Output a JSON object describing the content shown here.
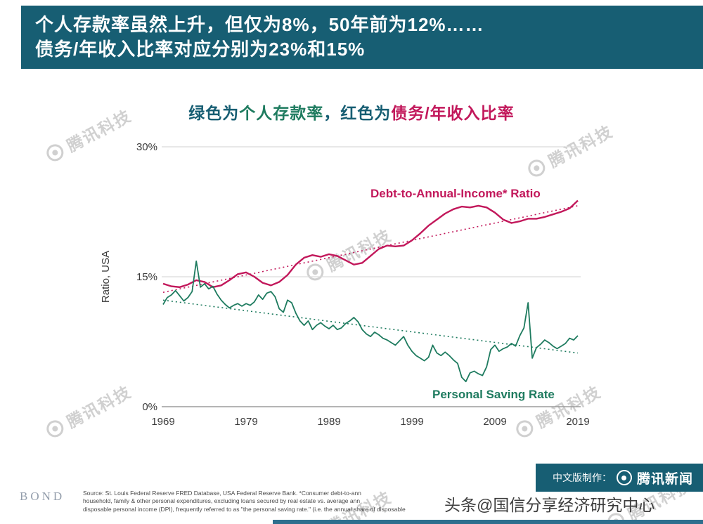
{
  "header": {
    "line1": "个人存款率虽然上升，但仅为8%，50年前为12%……",
    "line2": "债务/年收入比率对应分别为23%和15%"
  },
  "chart_title": {
    "part1": "绿色为",
    "part2": "个人存款率",
    "part3": "，红色为",
    "part4": "债务/年收入比率"
  },
  "chart_data": {
    "type": "line",
    "title": "绿色为个人存款率，红色为债务/年收入比率",
    "xlabel": "",
    "ylabel": "Ratio, USA",
    "ylim": [
      0,
      30
    ],
    "xlim": [
      1969,
      2019
    ],
    "grid": "horizontal",
    "legend_position": "inline-labels",
    "yticks": [
      "30%",
      "15%",
      "0%"
    ],
    "xticks": [
      "1969",
      "1979",
      "1989",
      "1999",
      "2009",
      "2019"
    ],
    "series": [
      {
        "id": "debt",
        "name": "Debt-to-Annual-Income* Ratio",
        "color": "#c2185b",
        "x_start": 1969,
        "x_step": 1,
        "values": [
          14.2,
          13.9,
          13.8,
          14.1,
          14.6,
          14.4,
          13.8,
          14.0,
          14.6,
          15.3,
          15.5,
          15.0,
          14.3,
          14.0,
          14.4,
          15.2,
          16.4,
          17.2,
          17.5,
          17.3,
          17.6,
          17.4,
          16.9,
          16.4,
          16.6,
          17.4,
          18.2,
          18.6,
          18.5,
          18.6,
          19.2,
          20.0,
          20.9,
          21.6,
          22.3,
          22.8,
          23.1,
          23.0,
          23.2,
          23.0,
          22.4,
          21.6,
          21.2,
          21.4,
          21.7,
          21.7,
          21.9,
          22.2,
          22.5,
          22.9,
          23.8
        ]
      },
      {
        "id": "saving",
        "name": "Personal Saving Rate",
        "color": "#1e7b5f",
        "x_start": 1969,
        "x_step": 0.5,
        "values": [
          11.8,
          12.6,
          12.9,
          13.4,
          12.8,
          12.2,
          12.6,
          13.3,
          16.8,
          13.8,
          14.2,
          13.6,
          13.9,
          13.0,
          12.3,
          11.8,
          11.4,
          11.7,
          11.9,
          11.6,
          11.9,
          11.7,
          12.1,
          12.9,
          12.4,
          13.1,
          13.3,
          12.7,
          11.3,
          10.9,
          12.3,
          12.0,
          10.8,
          9.9,
          9.4,
          9.9,
          8.9,
          9.4,
          9.7,
          9.3,
          9.0,
          9.4,
          8.9,
          9.1,
          9.6,
          9.9,
          10.3,
          9.8,
          8.9,
          8.4,
          8.1,
          8.6,
          8.3,
          7.9,
          7.7,
          7.4,
          7.1,
          7.6,
          8.1,
          7.1,
          6.4,
          5.9,
          5.6,
          5.3,
          5.7,
          7.1,
          6.2,
          5.9,
          6.3,
          5.9,
          5.4,
          5.0,
          3.4,
          2.9,
          3.9,
          4.1,
          3.8,
          3.6,
          4.6,
          6.6,
          7.1,
          6.4,
          6.7,
          6.9,
          7.3,
          7.0,
          8.2,
          9.1,
          12.0,
          5.6,
          6.8,
          7.2,
          7.7,
          7.4,
          7.0,
          6.7,
          7.0,
          7.3,
          7.9,
          7.7,
          8.2
        ]
      }
    ],
    "trendlines": [
      {
        "id": "debt-trend",
        "color": "#c2185b",
        "x1": 1969,
        "y1": 13.2,
        "x2": 2019,
        "y2": 23.2
      },
      {
        "id": "saving-trend",
        "color": "#1e7b5f",
        "x1": 1969,
        "y1": 12.3,
        "x2": 2019,
        "y2": 6.2
      }
    ]
  },
  "watermark": {
    "text": "腾讯科技"
  },
  "footer": {
    "bond_logo": "BOND",
    "source_line1": "Source: St. Louis Federal Reserve FRED Database, USA Federal Reserve Bank. *Consumer debt-to-ann",
    "source_line2": "household, family & other personal expenditures, excluding loans secured by real estate vs. average ann",
    "source_line3": "disposable personal income (DPI), frequently referred to as \"the personal saving rate.\" (i.e. the annual share of disposable",
    "credit_prefix": "中文版制作：",
    "credit_brand": "腾讯新闻",
    "overlay_credit": "头条@国信分享经济研究中心"
  }
}
